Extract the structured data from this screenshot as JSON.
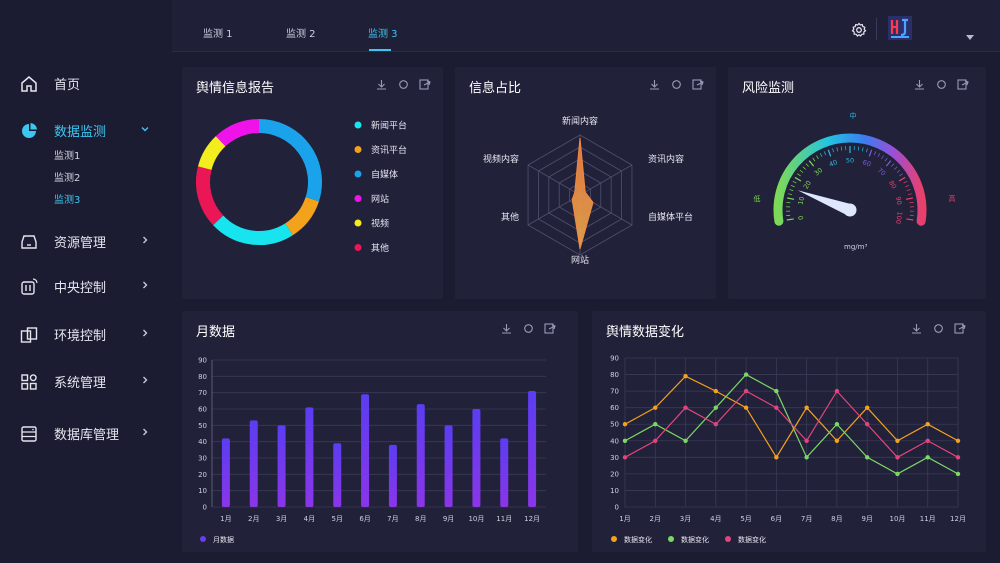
{
  "topbar": {
    "tabs": [
      {
        "label": "监测 1",
        "active": false
      },
      {
        "label": "监测 2",
        "active": false
      },
      {
        "label": "监测 3",
        "active": true
      }
    ],
    "settings_icon": "gear-icon",
    "logo_icon": "logo-icon",
    "dropdown_icon": "caret-down-icon"
  },
  "sidebar": {
    "items": [
      {
        "label": "首页",
        "icon": "home-icon"
      },
      {
        "label": "数据监测",
        "icon": "pie-icon",
        "active": true,
        "sub": [
          "监测1",
          "监测2",
          "监测3"
        ],
        "active_sub": 2
      },
      {
        "label": "资源管理",
        "icon": "resource-icon"
      },
      {
        "label": "中央控制",
        "icon": "control-icon"
      },
      {
        "label": "环境控制",
        "icon": "environment-icon"
      },
      {
        "label": "系统管理",
        "icon": "apps-icon"
      },
      {
        "label": "数据库管理",
        "icon": "database-icon"
      }
    ]
  },
  "panels": {
    "report": {
      "title": "舆情信息报告"
    },
    "ratio": {
      "title": "信息占比"
    },
    "risk": {
      "title": "风险监测",
      "unit": "mg/m³"
    },
    "monthly": {
      "title": "月数据"
    },
    "trend": {
      "title": "舆情数据变化"
    }
  },
  "colors": {
    "cyan": "#18e4f0",
    "orange": "#f3a21c",
    "blue": "#1aa3ea",
    "magenta": "#f013e9",
    "yellow": "#f3ec1e",
    "red": "#ea1655",
    "bar": "#6a3cf0",
    "line_orange": "#f4a21b",
    "line_green": "#7cd864",
    "line_pink": "#e2457c"
  },
  "chart_data": [
    {
      "type": "pie",
      "donut": true,
      "legend": [
        "新闻平台",
        "资讯平台",
        "自媒体",
        "网站",
        "视频",
        "其他"
      ],
      "values": [
        22,
        11,
        30,
        12,
        9,
        16
      ],
      "slice_order": [
        "自媒体",
        "资讯平台",
        "新闻平台",
        "其他",
        "视频",
        "网站"
      ],
      "legend_position": "right"
    },
    {
      "type": "radar",
      "axes": [
        "新闻内容",
        "资讯内容",
        "自媒体平台",
        "网站",
        "其他",
        "视频内容"
      ],
      "values": [
        95,
        10,
        25,
        90,
        15,
        10
      ],
      "max": 100
    },
    {
      "type": "gauge",
      "min": 0,
      "max": 100,
      "value": 15,
      "ticks": [
        "0",
        "10",
        "20",
        "30",
        "40",
        "50",
        "60",
        "70",
        "80",
        "90",
        "100"
      ],
      "zones": [
        "低",
        "中",
        "高"
      ],
      "unit": "mg/m³"
    },
    {
      "type": "bar",
      "categories": [
        "1月",
        "2月",
        "3月",
        "4月",
        "5月",
        "6月",
        "7月",
        "8月",
        "9月",
        "10月",
        "11月",
        "12月"
      ],
      "series": [
        {
          "name": "月数据",
          "values": [
            42,
            53,
            50,
            61,
            39,
            69,
            38,
            63,
            50,
            60,
            42,
            71
          ]
        }
      ],
      "ylim": [
        0,
        90
      ],
      "yticks": [
        0,
        10,
        20,
        30,
        40,
        50,
        60,
        70,
        80,
        90
      ],
      "legend_position": "bottom-left"
    },
    {
      "type": "line",
      "categories": [
        "1月",
        "2月",
        "3月",
        "4月",
        "5月",
        "6月",
        "7月",
        "8月",
        "9月",
        "10月",
        "11月",
        "12月"
      ],
      "series": [
        {
          "name": "数据变化",
          "color": "#f4a21b",
          "values": [
            50,
            60,
            79,
            70,
            60,
            30,
            60,
            40,
            60,
            40,
            50,
            40
          ]
        },
        {
          "name": "数据变化",
          "color": "#7cd864",
          "values": [
            40,
            50,
            40,
            60,
            80,
            70,
            30,
            50,
            30,
            20,
            30,
            20
          ]
        },
        {
          "name": "数据变化",
          "color": "#e2457c",
          "values": [
            30,
            40,
            60,
            50,
            70,
            60,
            40,
            70,
            50,
            30,
            40,
            30
          ]
        }
      ],
      "ylim": [
        0,
        90
      ],
      "yticks": [
        0,
        10,
        20,
        30,
        40,
        50,
        60,
        70,
        80,
        90
      ],
      "grid": true,
      "legend_position": "bottom-left"
    }
  ]
}
